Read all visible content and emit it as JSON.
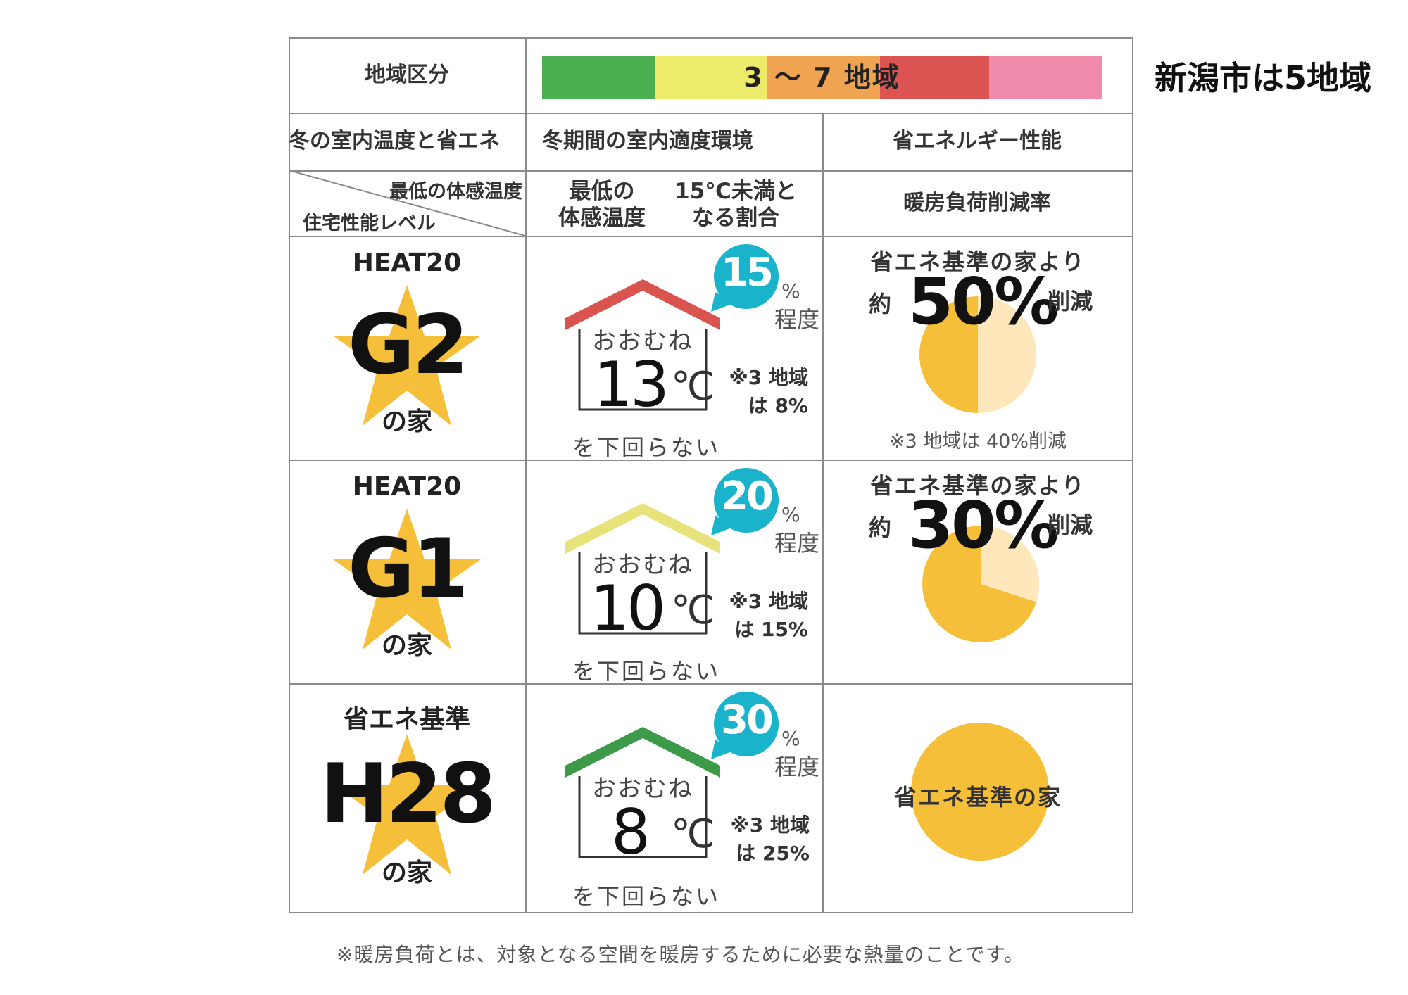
{
  "header": {
    "region_label": "地域区分",
    "region_range": "3 〜 7 地域",
    "side_note": "新潟市は5地域",
    "zone_colors": [
      "#4caf50",
      "#eeea6a",
      "#f0a350",
      "#dc5451",
      "#ef8aaa"
    ]
  },
  "columns": {
    "col1": "冬の室内温度と省エネ",
    "col2": "冬期間の室内適度環境",
    "col3": "省エネルギー性能"
  },
  "subheaders": {
    "diag_top": "最低の体感温度",
    "diag_bottom": "住宅性能レベル",
    "min_temp_l1": "最低の",
    "min_temp_l2": "体感温度",
    "ratio_l1": "15℃未満と",
    "ratio_l2": "なる割合",
    "heating": "暖房負荷削減率"
  },
  "rows": [
    {
      "level_sub": "HEAT20",
      "level_main": "G2",
      "level_house": "の家",
      "roof_color": "#d9534f",
      "bubble_pct": "15",
      "pct_sign": "%",
      "teido": "程度",
      "oomune": "おおむね",
      "temp": "13",
      "degc": "℃",
      "shita": "を下回らない",
      "note_l1": "※3 地域",
      "note_l2": "は 8%",
      "pie_head": "省エネ基準の家より",
      "yaku": "約",
      "reduction": "50%",
      "sakugen": "削減",
      "reduction_value": 50,
      "pie_note": "※3 地域は 40%削減"
    },
    {
      "level_sub": "HEAT20",
      "level_main": "G1",
      "level_house": "の家",
      "roof_color": "#e8e27a",
      "bubble_pct": "20",
      "pct_sign": "%",
      "teido": "程度",
      "oomune": "おおむね",
      "temp": "10",
      "degc": "℃",
      "shita": "を下回らない",
      "note_l1": "※3 地域",
      "note_l2": "は 15%",
      "pie_head": "省エネ基準の家より",
      "yaku": "約",
      "reduction": "30%",
      "sakugen": "削減",
      "reduction_value": 30
    },
    {
      "level_sub": "省エネ基準",
      "level_main": "H28",
      "level_house": "の家",
      "roof_color": "#3d9a48",
      "bubble_pct": "30",
      "pct_sign": "%",
      "teido": "程度",
      "oomune": "おおむね",
      "temp": "8",
      "degc": "℃",
      "shita": "を下回らない",
      "note_l1": "※3 地域",
      "note_l2": "は 25%",
      "pie_label": "省エネ基準の家",
      "reduction_value": 0
    }
  ],
  "footnote": "※暖房負荷とは、対象となる空間を暖房するために必要な熱量のことです。",
  "colors": {
    "star": "#f6bf3a",
    "bubble": "#1ab3cc",
    "pie_main": "#f6bf3a",
    "pie_light": "#fde7bb"
  }
}
